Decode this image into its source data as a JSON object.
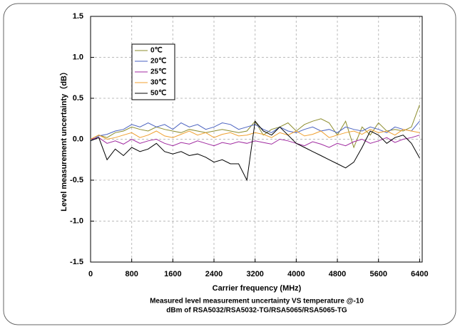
{
  "chart_data": {
    "type": "line",
    "x_label": "Carrier frequency (MHz)",
    "y_label": "Level measurement uncertainty（dB）",
    "caption": [
      "Measured level measurement uncertainty VS temperature @-10",
      "dBm of RSA5032/RSA5032-TG/RSA5065/RSA5065-TG"
    ],
    "x": [
      0,
      160,
      320,
      480,
      640,
      800,
      960,
      1120,
      1280,
      1440,
      1600,
      1760,
      1920,
      2080,
      2240,
      2400,
      2560,
      2720,
      2880,
      3040,
      3200,
      3360,
      3520,
      3680,
      3840,
      4000,
      4160,
      4320,
      4480,
      4640,
      4800,
      4960,
      5120,
      5280,
      5440,
      5600,
      5760,
      5920,
      6080,
      6240,
      6400
    ],
    "series": [
      {
        "name": "0℃",
        "color": "#8c8c2c",
        "values": [
          0.0,
          0.05,
          0.02,
          0.08,
          0.1,
          0.15,
          0.12,
          0.1,
          0.15,
          0.12,
          0.1,
          0.08,
          0.12,
          0.1,
          0.08,
          0.1,
          0.12,
          0.1,
          0.08,
          0.1,
          0.22,
          0.05,
          0.12,
          0.15,
          0.2,
          0.1,
          0.18,
          0.22,
          0.25,
          0.2,
          0.05,
          0.22,
          -0.1,
          0.15,
          0.05,
          0.2,
          0.1,
          0.12,
          0.1,
          0.15,
          0.42
        ]
      },
      {
        "name": "20℃",
        "color": "#4a62c0",
        "values": [
          -0.02,
          0.04,
          0.06,
          0.1,
          0.12,
          0.18,
          0.15,
          0.2,
          0.15,
          0.18,
          0.12,
          0.2,
          0.15,
          0.18,
          0.12,
          0.15,
          0.2,
          0.18,
          0.12,
          0.15,
          0.18,
          0.12,
          0.08,
          0.15,
          0.1,
          0.08,
          0.12,
          0.15,
          0.1,
          0.12,
          0.08,
          0.15,
          0.12,
          0.1,
          0.15,
          0.12,
          0.08,
          0.15,
          0.12,
          0.1,
          0.22
        ]
      },
      {
        "name": "25℃",
        "color": "#a02aa0",
        "values": [
          0.0,
          0.02,
          -0.05,
          -0.02,
          -0.06,
          0.0,
          -0.05,
          -0.02,
          0.0,
          -0.05,
          -0.08,
          -0.04,
          -0.06,
          -0.02,
          -0.05,
          -0.08,
          -0.04,
          -0.06,
          -0.03,
          -0.05,
          -0.02,
          -0.04,
          -0.06,
          0.0,
          -0.02,
          -0.05,
          -0.08,
          -0.03,
          -0.06,
          -0.1,
          -0.05,
          -0.08,
          -0.03,
          0.0,
          -0.05,
          -0.02,
          0.02,
          -0.04,
          0.0,
          0.02,
          0.05
        ]
      },
      {
        "name": "30℃",
        "color": "#f0a030",
        "values": [
          0.0,
          0.05,
          0.0,
          0.02,
          0.05,
          0.08,
          0.02,
          0.05,
          0.1,
          0.04,
          0.02,
          0.06,
          0.1,
          0.05,
          0.08,
          0.02,
          0.06,
          0.08,
          0.04,
          0.05,
          0.08,
          0.06,
          0.02,
          0.08,
          0.05,
          0.1,
          0.04,
          0.06,
          0.1,
          0.02,
          0.05,
          0.08,
          0.1,
          0.06,
          0.12,
          0.08,
          0.1,
          0.05,
          0.12,
          0.1,
          0.08
        ]
      },
      {
        "name": "50℃",
        "color": "#000000",
        "values": [
          -0.02,
          0.02,
          -0.25,
          -0.12,
          -0.2,
          -0.1,
          -0.15,
          -0.12,
          -0.05,
          -0.15,
          -0.18,
          -0.15,
          -0.2,
          -0.18,
          -0.22,
          -0.28,
          -0.25,
          -0.3,
          -0.3,
          -0.5,
          0.22,
          0.1,
          0.05,
          0.15,
          0.05,
          -0.05,
          -0.1,
          -0.15,
          -0.2,
          -0.25,
          -0.3,
          -0.35,
          -0.28,
          -0.1,
          0.1,
          0.05,
          -0.05,
          0.02,
          0.05,
          -0.05,
          -0.23
        ]
      }
    ],
    "xlim": [
      0,
      6450
    ],
    "ylim": [
      -1.5,
      1.5
    ],
    "xticks": [
      0,
      800,
      1600,
      2400,
      3200,
      4000,
      4800,
      5600,
      6400
    ],
    "yticks": [
      -1.5,
      {
        "value": -1.0,
        "label": "-1.0"
      },
      -0.5,
      {
        "value": 0,
        "label": "0.0"
      },
      0.5,
      {
        "value": 1.0,
        "label": "1.0"
      },
      1.5
    ],
    "grid": true
  }
}
